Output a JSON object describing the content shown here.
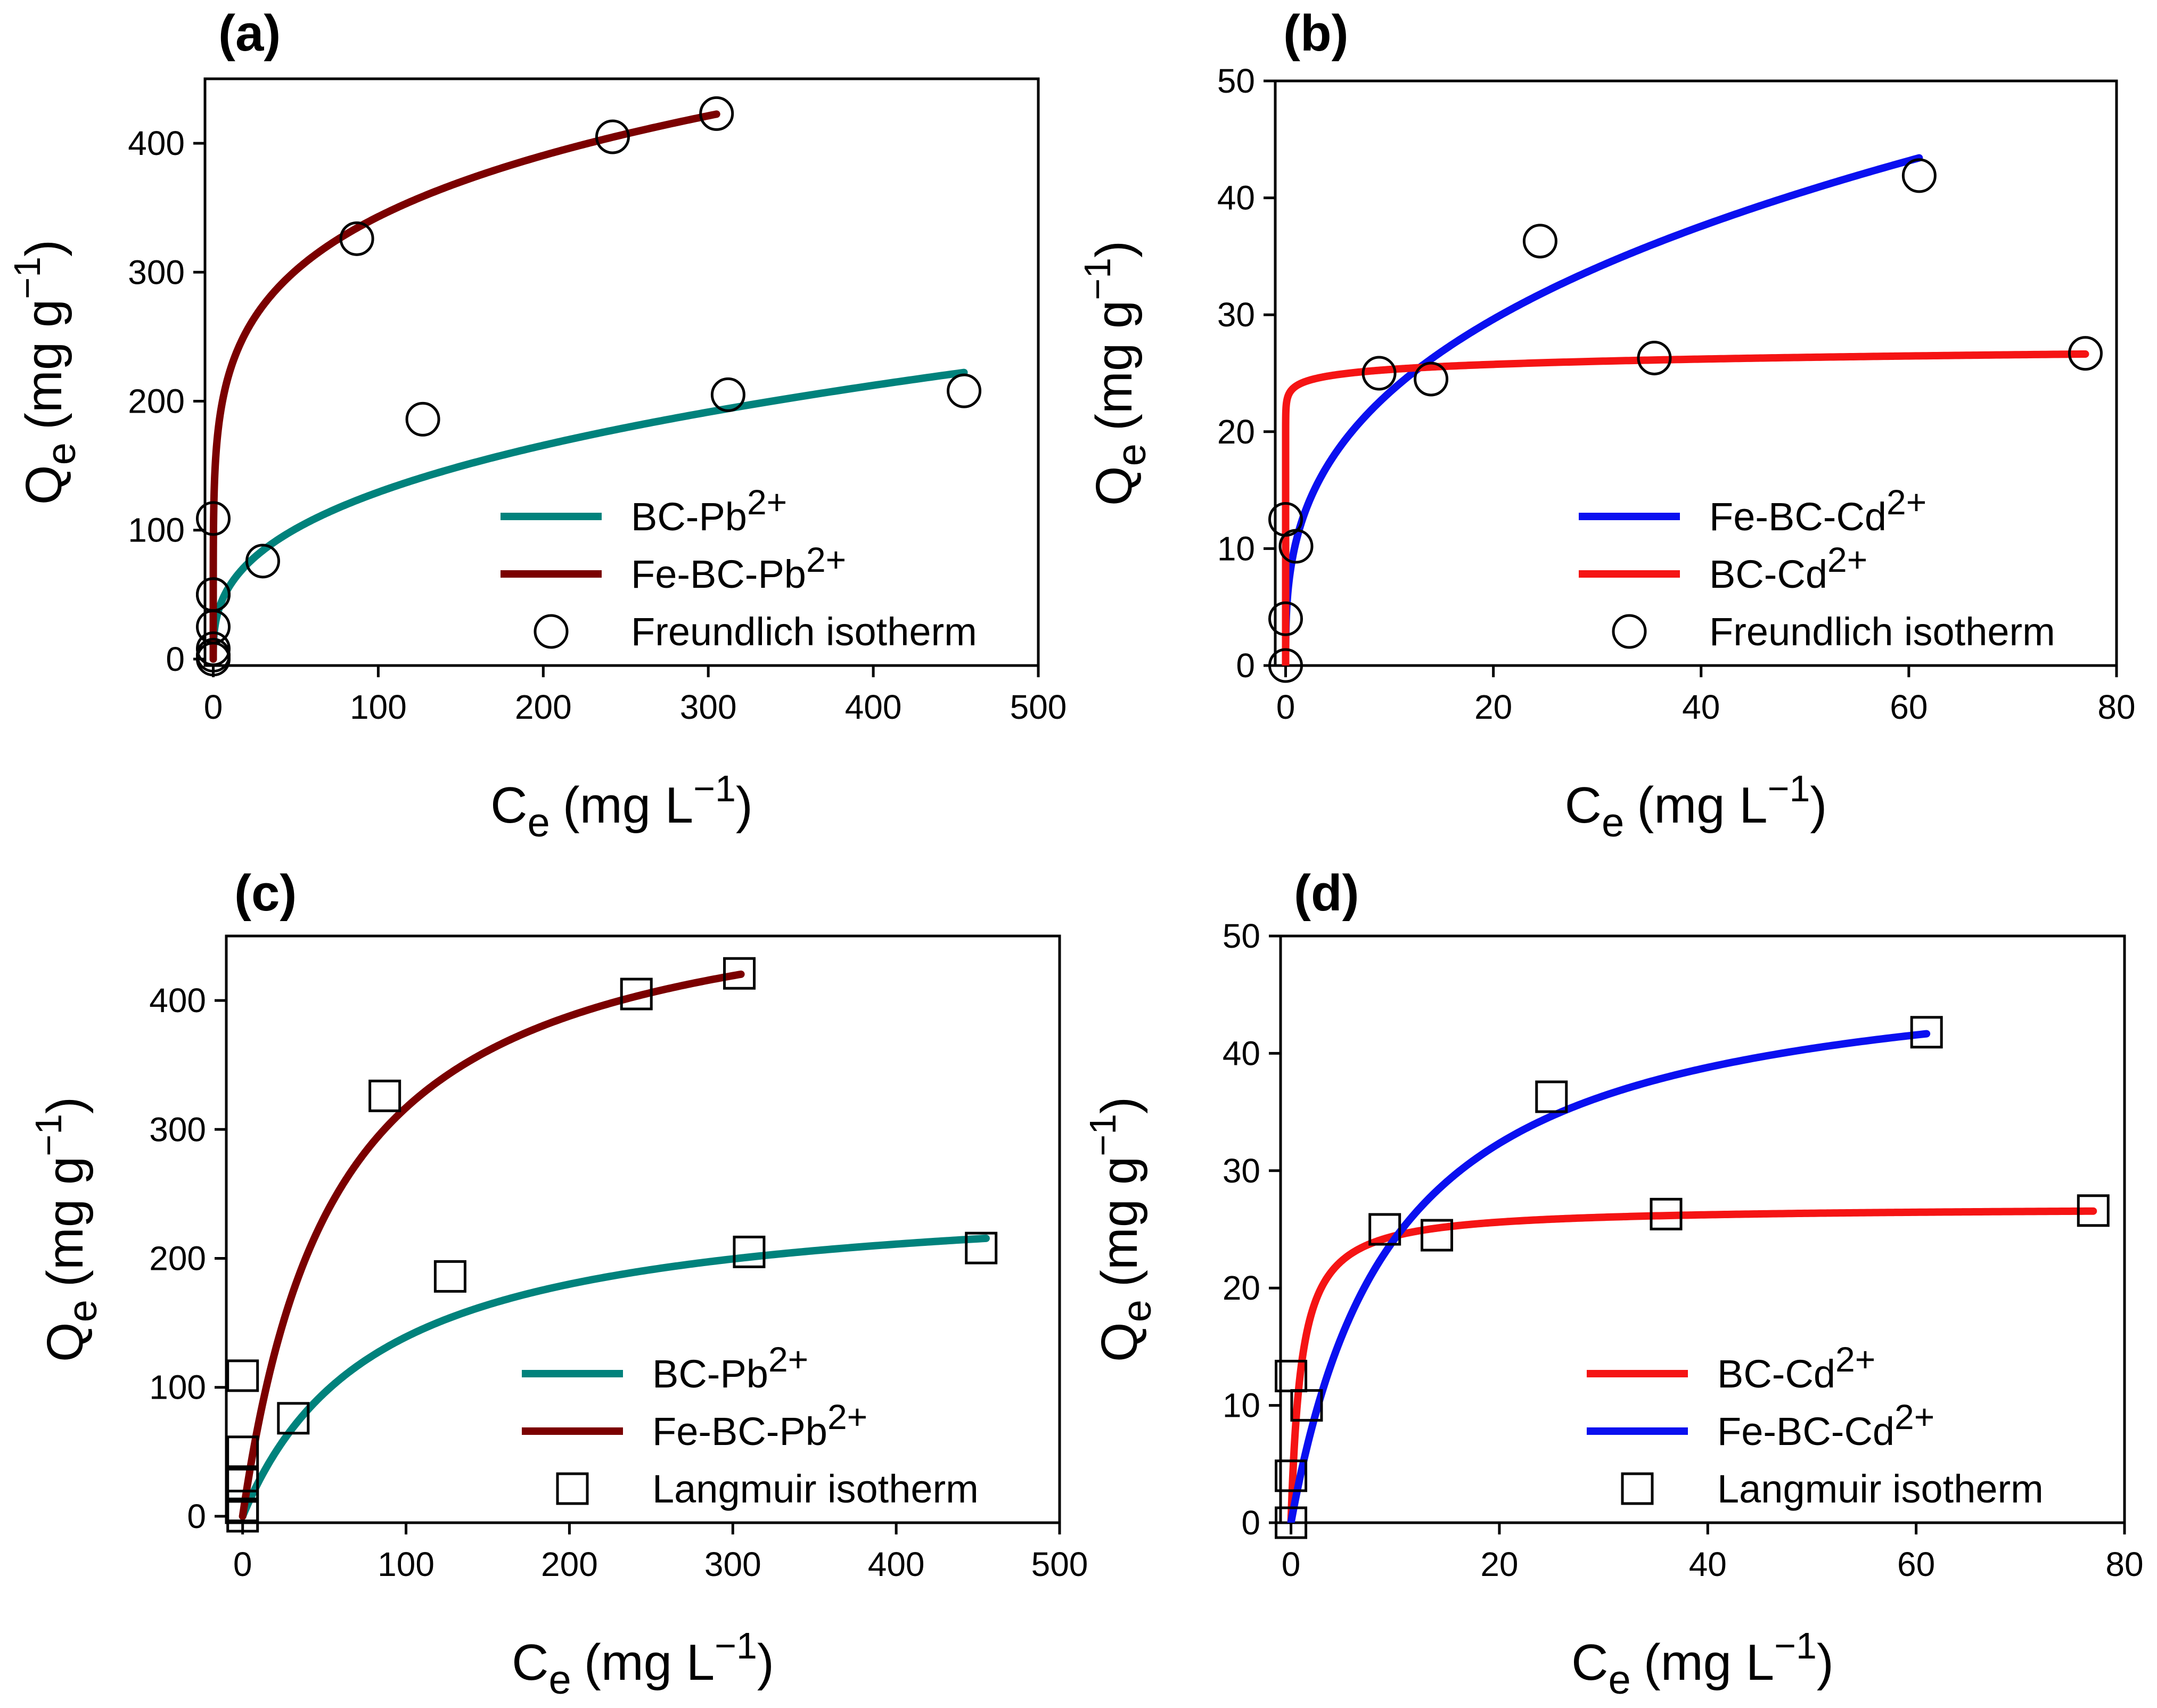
{
  "chart_data": [
    {
      "id": "a",
      "type": "scatter",
      "panel_label": "(a)",
      "ylabel": "Q",
      "ylabel_sub": "e",
      "ylabel_unit": "(mg g",
      "ylabel_sup": "−1",
      "ylabel_close": ")",
      "xlabel": "C",
      "xlabel_sub": "e",
      "xlabel_unit": "(mg L",
      "xlabel_sup": "−1",
      "xlabel_close": ")",
      "xlim": [
        -5,
        500
      ],
      "ylim": [
        -5,
        450
      ],
      "xticks": [
        0,
        100,
        200,
        300,
        400,
        500
      ],
      "yticks": [
        0,
        100,
        200,
        300,
        400
      ],
      "model": "freundlich",
      "legend_position": "bottom-right",
      "legend_marker": "circle",
      "legend_marker_label": "Freundlich isotherm",
      "series": [
        {
          "name": "BC-Pb",
          "superscript": "2+",
          "color": "#00827c",
          "model": "freundlich",
          "params": {
            "kf": 25.0,
            "n": 0.357
          },
          "x_range": [
            0,
            455
          ]
        },
        {
          "name": "Fe-BC-Pb",
          "superscript": "2+",
          "color": "#7b0000",
          "model": "freundlich",
          "params": {
            "kf": 145.0,
            "n": 0.187
          },
          "x_range": [
            0,
            305
          ]
        }
      ],
      "points": [
        [
          0,
          0
        ],
        [
          0,
          3
        ],
        [
          0,
          8
        ],
        [
          0,
          25
        ],
        [
          0,
          50
        ],
        [
          0,
          50
        ],
        [
          0,
          109
        ],
        [
          30,
          76
        ],
        [
          87,
          326
        ],
        [
          127,
          186
        ],
        [
          242,
          405
        ],
        [
          312,
          205
        ],
        [
          305,
          423
        ],
        [
          455,
          208
        ]
      ]
    },
    {
      "id": "b",
      "type": "scatter",
      "panel_label": "(b)",
      "ylabel": "Q",
      "ylabel_sub": "e",
      "ylabel_unit": "(mg g",
      "ylabel_sup": "−1",
      "ylabel_close": ")",
      "xlabel": "C",
      "xlabel_sub": "e",
      "xlabel_unit": "(mg L",
      "xlabel_sup": "−1",
      "xlabel_close": ")",
      "xlim": [
        -1,
        80
      ],
      "ylim": [
        0,
        50
      ],
      "xticks": [
        0,
        20,
        40,
        60,
        80
      ],
      "yticks": [
        0,
        10,
        20,
        30,
        40,
        50
      ],
      "model": "freundlich",
      "legend_position": "bottom-right",
      "legend_marker": "circle",
      "legend_marker_label": "Freundlich isotherm",
      "series": [
        {
          "name": "Fe-BC-Cd",
          "superscript": "2+",
          "color": "#0a10f0",
          "model": "freundlich",
          "params": {
            "kf": 10.6,
            "n": 0.343
          },
          "x_range": [
            0,
            61
          ]
        },
        {
          "name": "BC-Cd",
          "superscript": "2+",
          "color": "#f51414",
          "model": "freundlich",
          "params": {
            "kf": 23.9,
            "n": 0.025
          },
          "x_range": [
            0,
            77
          ]
        }
      ],
      "points": [
        [
          0,
          0
        ],
        [
          0,
          4
        ],
        [
          0,
          12.5
        ],
        [
          1,
          10.2
        ],
        [
          9,
          25
        ],
        [
          14,
          24.5
        ],
        [
          24.5,
          36.3
        ],
        [
          35.5,
          26.3
        ],
        [
          61,
          41.9
        ],
        [
          77,
          26.7
        ]
      ]
    },
    {
      "id": "c",
      "type": "scatter",
      "panel_label": "(c)",
      "ylabel": "Q",
      "ylabel_sub": "e",
      "ylabel_unit": "(mg g",
      "ylabel_sup": "−1",
      "ylabel_close": ")",
      "xlabel": "C",
      "xlabel_sub": "e",
      "xlabel_unit": "(mg L",
      "xlabel_sup": "−1",
      "xlabel_close": ")",
      "xlim": [
        -10,
        500
      ],
      "ylim": [
        -5,
        450
      ],
      "xticks": [
        0,
        100,
        200,
        300,
        400,
        500
      ],
      "yticks": [
        0,
        100,
        200,
        300,
        400
      ],
      "model": "langmuir",
      "legend_position": "bottom-right",
      "legend_marker": "square",
      "legend_marker_label": "Langmuir isotherm",
      "series": [
        {
          "name": "BC-Pb",
          "superscript": "2+",
          "color": "#00827c",
          "model": "langmuir",
          "params": {
            "qm": 255,
            "k": 0.012
          },
          "x_range": [
            0,
            455
          ]
        },
        {
          "name": "Fe-BC-Pb",
          "superscript": "2+",
          "color": "#7b0000",
          "model": "langmuir",
          "params": {
            "qm": 500,
            "k": 0.0173
          },
          "x_range": [
            0,
            305
          ]
        }
      ],
      "points": [
        [
          0,
          0
        ],
        [
          0,
          8
        ],
        [
          0,
          25
        ],
        [
          0,
          50
        ],
        [
          0,
          109
        ],
        [
          31,
          76
        ],
        [
          87,
          326
        ],
        [
          127,
          186
        ],
        [
          241,
          405
        ],
        [
          310,
          205
        ],
        [
          304,
          421
        ],
        [
          452,
          208
        ]
      ]
    },
    {
      "id": "d",
      "type": "scatter",
      "panel_label": "(d)",
      "ylabel": "Q",
      "ylabel_sub": "e",
      "ylabel_unit": "(mg g",
      "ylabel_sup": "−1",
      "ylabel_close": ")",
      "xlabel": "C",
      "xlabel_sub": "e",
      "xlabel_unit": "(mg L",
      "xlabel_sup": "−1",
      "xlabel_close": ")",
      "xlim": [
        -1,
        80
      ],
      "ylim": [
        0,
        50
      ],
      "xticks": [
        0,
        20,
        40,
        60,
        80
      ],
      "yticks": [
        0,
        10,
        20,
        30,
        40,
        50
      ],
      "model": "langmuir",
      "legend_position": "bottom-right",
      "legend_marker": "square",
      "legend_marker_label": "Langmuir isotherm",
      "series": [
        {
          "name": "BC-Cd",
          "superscript": "2+",
          "color": "#f51414",
          "model": "langmuir",
          "params": {
            "qm": 26.9,
            "k": 1.0
          },
          "x_range": [
            0,
            77
          ]
        },
        {
          "name": "Fe-BC-Cd",
          "superscript": "2+",
          "color": "#0a10f0",
          "model": "langmuir",
          "params": {
            "qm": 48.5,
            "k": 0.1
          },
          "x_range": [
            0,
            61
          ]
        }
      ],
      "points": [
        [
          0,
          0
        ],
        [
          0,
          4
        ],
        [
          0,
          12.5
        ],
        [
          1.5,
          10
        ],
        [
          9,
          25
        ],
        [
          14,
          24.5
        ],
        [
          25,
          36.3
        ],
        [
          36,
          26.3
        ],
        [
          61,
          41.8
        ],
        [
          77,
          26.6
        ]
      ]
    }
  ]
}
